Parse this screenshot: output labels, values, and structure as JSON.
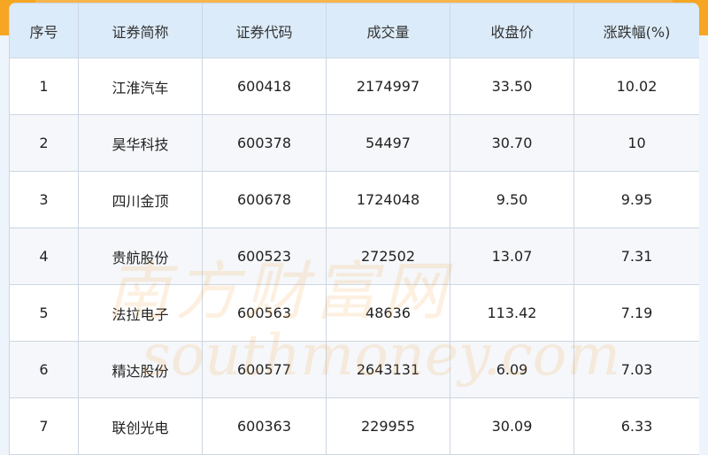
{
  "table": {
    "headers": [
      "序号",
      "证券简称",
      "证券代码",
      "成交量",
      "收盘价",
      "涨跌幅(%)"
    ],
    "rows": [
      [
        "1",
        "江淮汽车",
        "600418",
        "2174997",
        "33.50",
        "10.02"
      ],
      [
        "2",
        "昊华科技",
        "600378",
        "54497",
        "30.70",
        "10"
      ],
      [
        "3",
        "四川金顶",
        "600678",
        "1724048",
        "9.50",
        "9.95"
      ],
      [
        "4",
        "贵航股份",
        "600523",
        "272502",
        "13.07",
        "7.31"
      ],
      [
        "5",
        "法拉电子",
        "600563",
        "48636",
        "113.42",
        "7.19"
      ],
      [
        "6",
        "精达股份",
        "600577",
        "2643131",
        "6.09",
        "7.03"
      ],
      [
        "7",
        "联创光电",
        "600363",
        "229955",
        "30.09",
        "6.33"
      ]
    ]
  },
  "watermark": {
    "cn": "南方财富网",
    "en": "southmoney.com"
  },
  "colors": {
    "accent": "#f6a623",
    "header_bg": "#dcebf9"
  }
}
